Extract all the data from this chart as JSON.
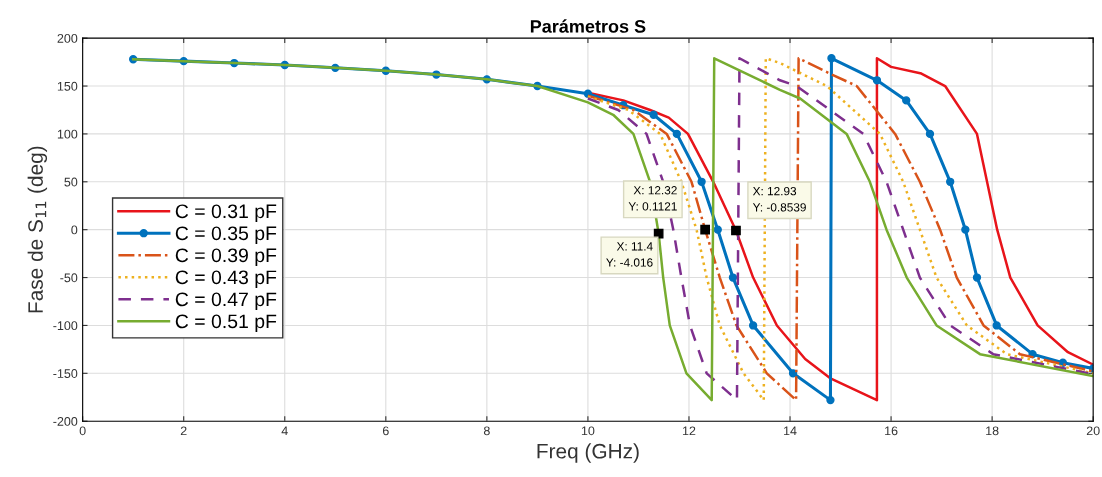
{
  "chart_data": {
    "type": "line",
    "title": "Parámetros S",
    "xlabel": "Freq (GHz)",
    "ylabel": "Fase de S$_{11}$ (deg)",
    "xlim": [
      0,
      20
    ],
    "xticks": [
      0,
      2,
      4,
      6,
      8,
      10,
      12,
      14,
      16,
      18,
      20
    ],
    "ylim": [
      -200,
      200
    ],
    "yticks": [
      -200,
      -150,
      -100,
      -50,
      0,
      50,
      100,
      150,
      200
    ],
    "grid": true,
    "legend": "left",
    "series": [
      {
        "name": "C = 0.31 pF",
        "color": "#e8141a",
        "line_style": "solid",
        "marker": "none",
        "x": [
          10,
          10.7,
          11.23,
          11.6,
          11.98,
          12.48,
          12.93,
          13.27,
          13.74,
          14.3,
          14.79,
          15.72,
          15.72,
          16,
          16.6,
          17.07,
          17.7,
          18.1,
          18.36,
          18.9,
          19.5,
          20
        ],
        "values": [
          143,
          135,
          125,
          117,
          100,
          50,
          -0.8539,
          -50,
          -100,
          -135,
          -155,
          -178,
          179,
          170,
          163,
          150,
          100,
          0,
          -50,
          -100,
          -128,
          -141
        ]
      },
      {
        "name": "C = 0.35 pF",
        "color": "#0072bd",
        "line_style": "solid",
        "marker": "circle",
        "x": [
          1,
          2,
          3,
          4,
          5,
          6,
          7,
          8,
          9,
          10,
          10.7,
          11.3,
          11.76,
          12.25,
          12.57,
          12.87,
          13.27,
          14.06,
          14.8,
          14.82,
          15.72,
          16.3,
          16.77,
          17.17,
          17.47,
          17.7,
          18.09,
          18.8,
          19.4,
          20
        ],
        "values": [
          178,
          176,
          174,
          172,
          169,
          166,
          162,
          157,
          150,
          142,
          130,
          120,
          100,
          50,
          0,
          -50,
          -100,
          -150,
          -178,
          179,
          156,
          135,
          100,
          50,
          0,
          -50,
          -100,
          -130,
          -139,
          -145
        ]
      },
      {
        "name": "C = 0.39 pF",
        "color": "#d95319",
        "line_style": "dashdot",
        "marker": "none",
        "x": [
          10,
          10.9,
          11.56,
          12.05,
          12.32,
          12.61,
          12.94,
          13.54,
          14.12,
          14.17,
          14.79,
          15.32,
          16.08,
          16.57,
          16.97,
          17.3,
          17.83,
          18.55,
          20
        ],
        "values": [
          140,
          125,
          100,
          50,
          0.1121,
          -50,
          -100,
          -150,
          -178,
          179,
          163,
          150,
          100,
          50,
          0,
          -50,
          -100,
          -130,
          -148
        ]
      },
      {
        "name": "C = 0.43 pF",
        "color": "#edb120",
        "line_style": "dotted",
        "marker": "none",
        "x": [
          10,
          10.8,
          11.43,
          11.85,
          12.15,
          12.35,
          12.61,
          13.08,
          13.48,
          13.52,
          13.8,
          14.73,
          15.78,
          16.24,
          16.57,
          16.9,
          17.5,
          18.29,
          20
        ],
        "values": [
          139,
          125,
          100,
          50,
          0,
          -50,
          -100,
          -150,
          -178,
          179,
          174,
          150,
          100,
          50,
          0,
          -50,
          -100,
          -130,
          -150
        ]
      },
      {
        "name": "C = 0.47 pF",
        "color": "#7e2f8e",
        "line_style": "dashed",
        "marker": "none",
        "x": [
          10,
          10.6,
          11.16,
          11.49,
          11.69,
          11.85,
          12.02,
          12.35,
          12.95,
          13.0,
          13.8,
          14.13,
          15.45,
          15.91,
          16.24,
          16.57,
          17.17,
          18.02,
          20
        ],
        "values": [
          137,
          125,
          100,
          50,
          0,
          -50,
          -100,
          -150,
          -178,
          179,
          156,
          150,
          100,
          50,
          0,
          -50,
          -100,
          -130,
          -151
        ]
      },
      {
        "name": "C = 0.51 pF",
        "color": "#77ac30",
        "line_style": "solid",
        "marker": "none",
        "x": [
          1,
          2,
          3,
          4,
          5,
          6,
          7,
          8,
          9,
          10,
          10.5,
          10.9,
          11.23,
          11.4,
          11.49,
          11.62,
          11.95,
          12.45,
          12.5,
          13.8,
          14.2,
          15.12,
          15.58,
          15.91,
          16.31,
          16.9,
          17.76,
          20
        ],
        "values": [
          178,
          176,
          174,
          172,
          169,
          166,
          162,
          157,
          150,
          133,
          120,
          100,
          50,
          -4.016,
          -50,
          -100,
          -150,
          -178,
          179,
          146,
          137,
          100,
          50,
          0,
          -50,
          -100,
          -130,
          -153
        ]
      }
    ],
    "annotations": [
      {
        "text": "X: 11.4\nY: -4.016",
        "x": 11.4,
        "y": -4.016
      },
      {
        "text": "X: 12.32\nY: 0.1121",
        "x": 12.32,
        "y": 0.1121
      },
      {
        "text": "X: 12.93\nY: -0.8539",
        "x": 12.93,
        "y": -0.8539
      }
    ]
  }
}
